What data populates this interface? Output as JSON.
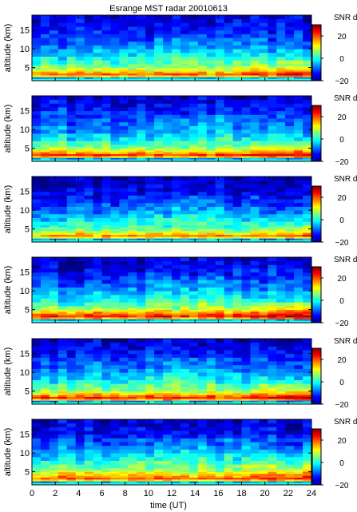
{
  "chart_data": {
    "type": "heatmap",
    "title": "Esrange MST radar 20010613",
    "xlabel": "time (UT)",
    "ylabel": "altitude (km)",
    "colorbar_label": "SNR dB",
    "xlim": [
      0,
      24
    ],
    "ylim": [
      1.5,
      19
    ],
    "clim": [
      -20,
      30
    ],
    "xticks": [
      "0",
      "2",
      "4",
      "6",
      "8",
      "10",
      "12",
      "14",
      "16",
      "18",
      "20",
      "22",
      "24"
    ],
    "yticks": [
      "5",
      "10",
      "15"
    ],
    "colorbar_ticks": [
      "20",
      "0",
      "−20"
    ],
    "colormap": "jet",
    "time_step_hours": 0.75,
    "altitude_bins_km": [
      2.0,
      2.5,
      3.0,
      3.5,
      4.0,
      4.5,
      5.0,
      5.5,
      6.0,
      7.0,
      8.0,
      9.0,
      10.0,
      11.0,
      12.0,
      13.0,
      14.0,
      15.0,
      16.0,
      17.0,
      18.0
    ],
    "panels": [
      {
        "profile_db": [
          -6,
          12,
          19,
          15,
          10,
          7,
          5,
          3,
          1,
          -2,
          -4,
          -6,
          -8,
          -10,
          -11,
          -12,
          -13,
          -14,
          -15,
          -15,
          -16
        ],
        "day_trend": 5,
        "noise_seed": 11
      },
      {
        "profile_db": [
          -6,
          14,
          21,
          17,
          12,
          8,
          5,
          3,
          1,
          -2,
          -4,
          -7,
          -8,
          -9,
          -9,
          -11,
          -12,
          -13,
          -14,
          -15,
          -16
        ],
        "day_trend": 6,
        "noise_seed": 23
      },
      {
        "profile_db": [
          -6,
          11,
          17,
          12,
          8,
          5,
          3,
          1,
          -1,
          -3,
          -5,
          -7,
          -9,
          -11,
          -12,
          -13,
          -14,
          -15,
          -16,
          -17,
          -17
        ],
        "day_trend": 4,
        "noise_seed": 37
      },
      {
        "profile_db": [
          -6,
          14,
          22,
          19,
          15,
          11,
          7,
          5,
          2,
          -1,
          -3,
          -5,
          -7,
          -9,
          -11,
          -12,
          -13,
          -14,
          -15,
          -16,
          -16
        ],
        "day_trend": 7,
        "noise_seed": 41
      },
      {
        "profile_db": [
          -6,
          15,
          22,
          18,
          13,
          9,
          6,
          4,
          2,
          -1,
          -3,
          -5,
          -7,
          -9,
          -10,
          -11,
          -12,
          -13,
          -14,
          -15,
          -16
        ],
        "day_trend": 7,
        "noise_seed": 53
      },
      {
        "profile_db": [
          -6,
          12,
          19,
          16,
          13,
          10,
          7,
          5,
          3,
          1,
          -2,
          -4,
          -6,
          -8,
          -10,
          -11,
          -13,
          -14,
          -15,
          -16,
          -16
        ],
        "day_trend": 5,
        "noise_seed": 67
      }
    ]
  }
}
